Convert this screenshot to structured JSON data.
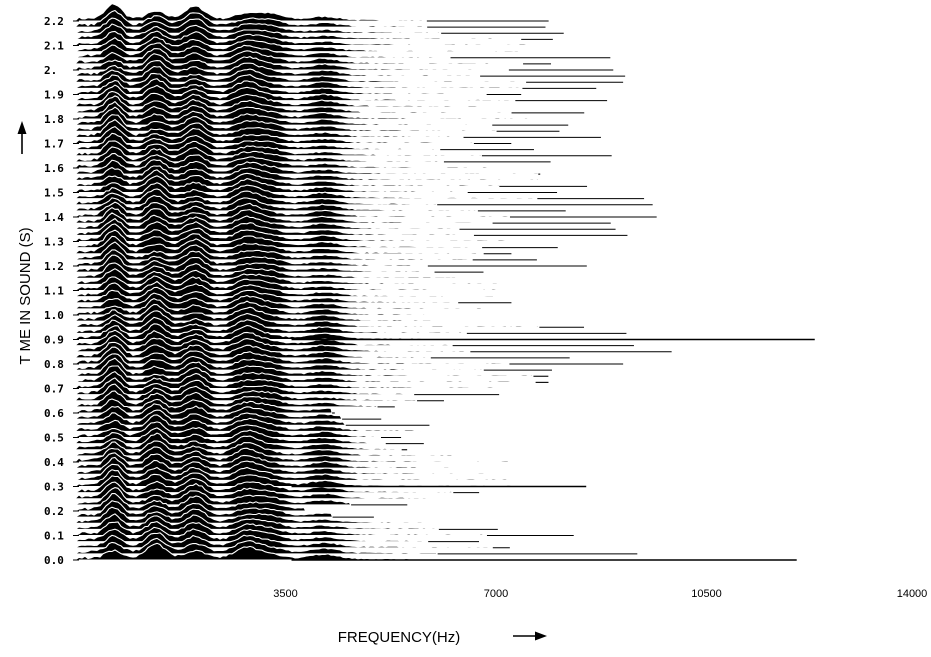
{
  "chart_data": {
    "type": "area",
    "style": "waterfall spectrogram (stacked spectral slices)",
    "xlabel": "FREQUENCY(Hz)",
    "ylabel": "T ME IN SOUND (S)",
    "x_ticks": [
      {
        "value": 3500,
        "label": "3500"
      },
      {
        "value": 7000,
        "label": "7000"
      },
      {
        "value": 10500,
        "label": "10500"
      },
      {
        "value": 14000,
        "label": "14000"
      }
    ],
    "y_ticks": [
      {
        "value": 0.0,
        "label": "0.0"
      },
      {
        "value": 0.1,
        "label": "0.1"
      },
      {
        "value": 0.2,
        "label": "0.2"
      },
      {
        "value": 0.3,
        "label": "0.3"
      },
      {
        "value": 0.4,
        "label": "0.4"
      },
      {
        "value": 0.5,
        "label": "0.5"
      },
      {
        "value": 0.6,
        "label": "0.6"
      },
      {
        "value": 0.7,
        "label": "0.7"
      },
      {
        "value": 0.8,
        "label": "0.8"
      },
      {
        "value": 0.9,
        "label": "0.9"
      },
      {
        "value": 1.0,
        "label": "1.0"
      },
      {
        "value": 1.1,
        "label": "1.1"
      },
      {
        "value": 1.2,
        "label": "1.2"
      },
      {
        "value": 1.3,
        "label": "1.3"
      },
      {
        "value": 1.4,
        "label": "1.4"
      },
      {
        "value": 1.5,
        "label": "1.5"
      },
      {
        "value": 1.6,
        "label": "1.6"
      },
      {
        "value": 1.7,
        "label": "1.7"
      },
      {
        "value": 1.8,
        "label": "1.8"
      },
      {
        "value": 1.9,
        "label": "1.9"
      },
      {
        "value": 2.0,
        "label": "2."
      },
      {
        "value": 2.1,
        "label": "2.1"
      },
      {
        "value": 2.2,
        "label": "2.2"
      }
    ],
    "xlim": [
      0,
      14000
    ],
    "ylim": [
      0,
      2.2
    ],
    "grid": false,
    "legend": "none",
    "series_color": "#000000",
    "slice_interval_s": 0.025,
    "resonance_peaks_hz": [
      650,
      1350,
      2000,
      2850,
      3250,
      4150
    ],
    "spectral_extent_hz": [
      {
        "t": 0.0,
        "f": 4300
      },
      {
        "t": 0.0,
        "f": 12000
      },
      {
        "t": 0.2,
        "f": 4800
      },
      {
        "t": 0.3,
        "f": 8500
      },
      {
        "t": 0.6,
        "f": 5500
      },
      {
        "t": 0.9,
        "f": 12300
      },
      {
        "t": 1.0,
        "f": 7400
      },
      {
        "t": 1.2,
        "f": 9100
      },
      {
        "t": 1.4,
        "f": 10000
      },
      {
        "t": 1.5,
        "f": 10350
      },
      {
        "t": 1.6,
        "f": 9200
      },
      {
        "t": 1.8,
        "f": 8800
      },
      {
        "t": 1.9,
        "f": 9600
      },
      {
        "t": 2.1,
        "f": 8800
      },
      {
        "t": 2.2,
        "f": 9300
      }
    ]
  },
  "icons": {
    "y_axis_arrow": "arrow-up-icon",
    "x_axis_arrow": "arrow-right-icon"
  }
}
